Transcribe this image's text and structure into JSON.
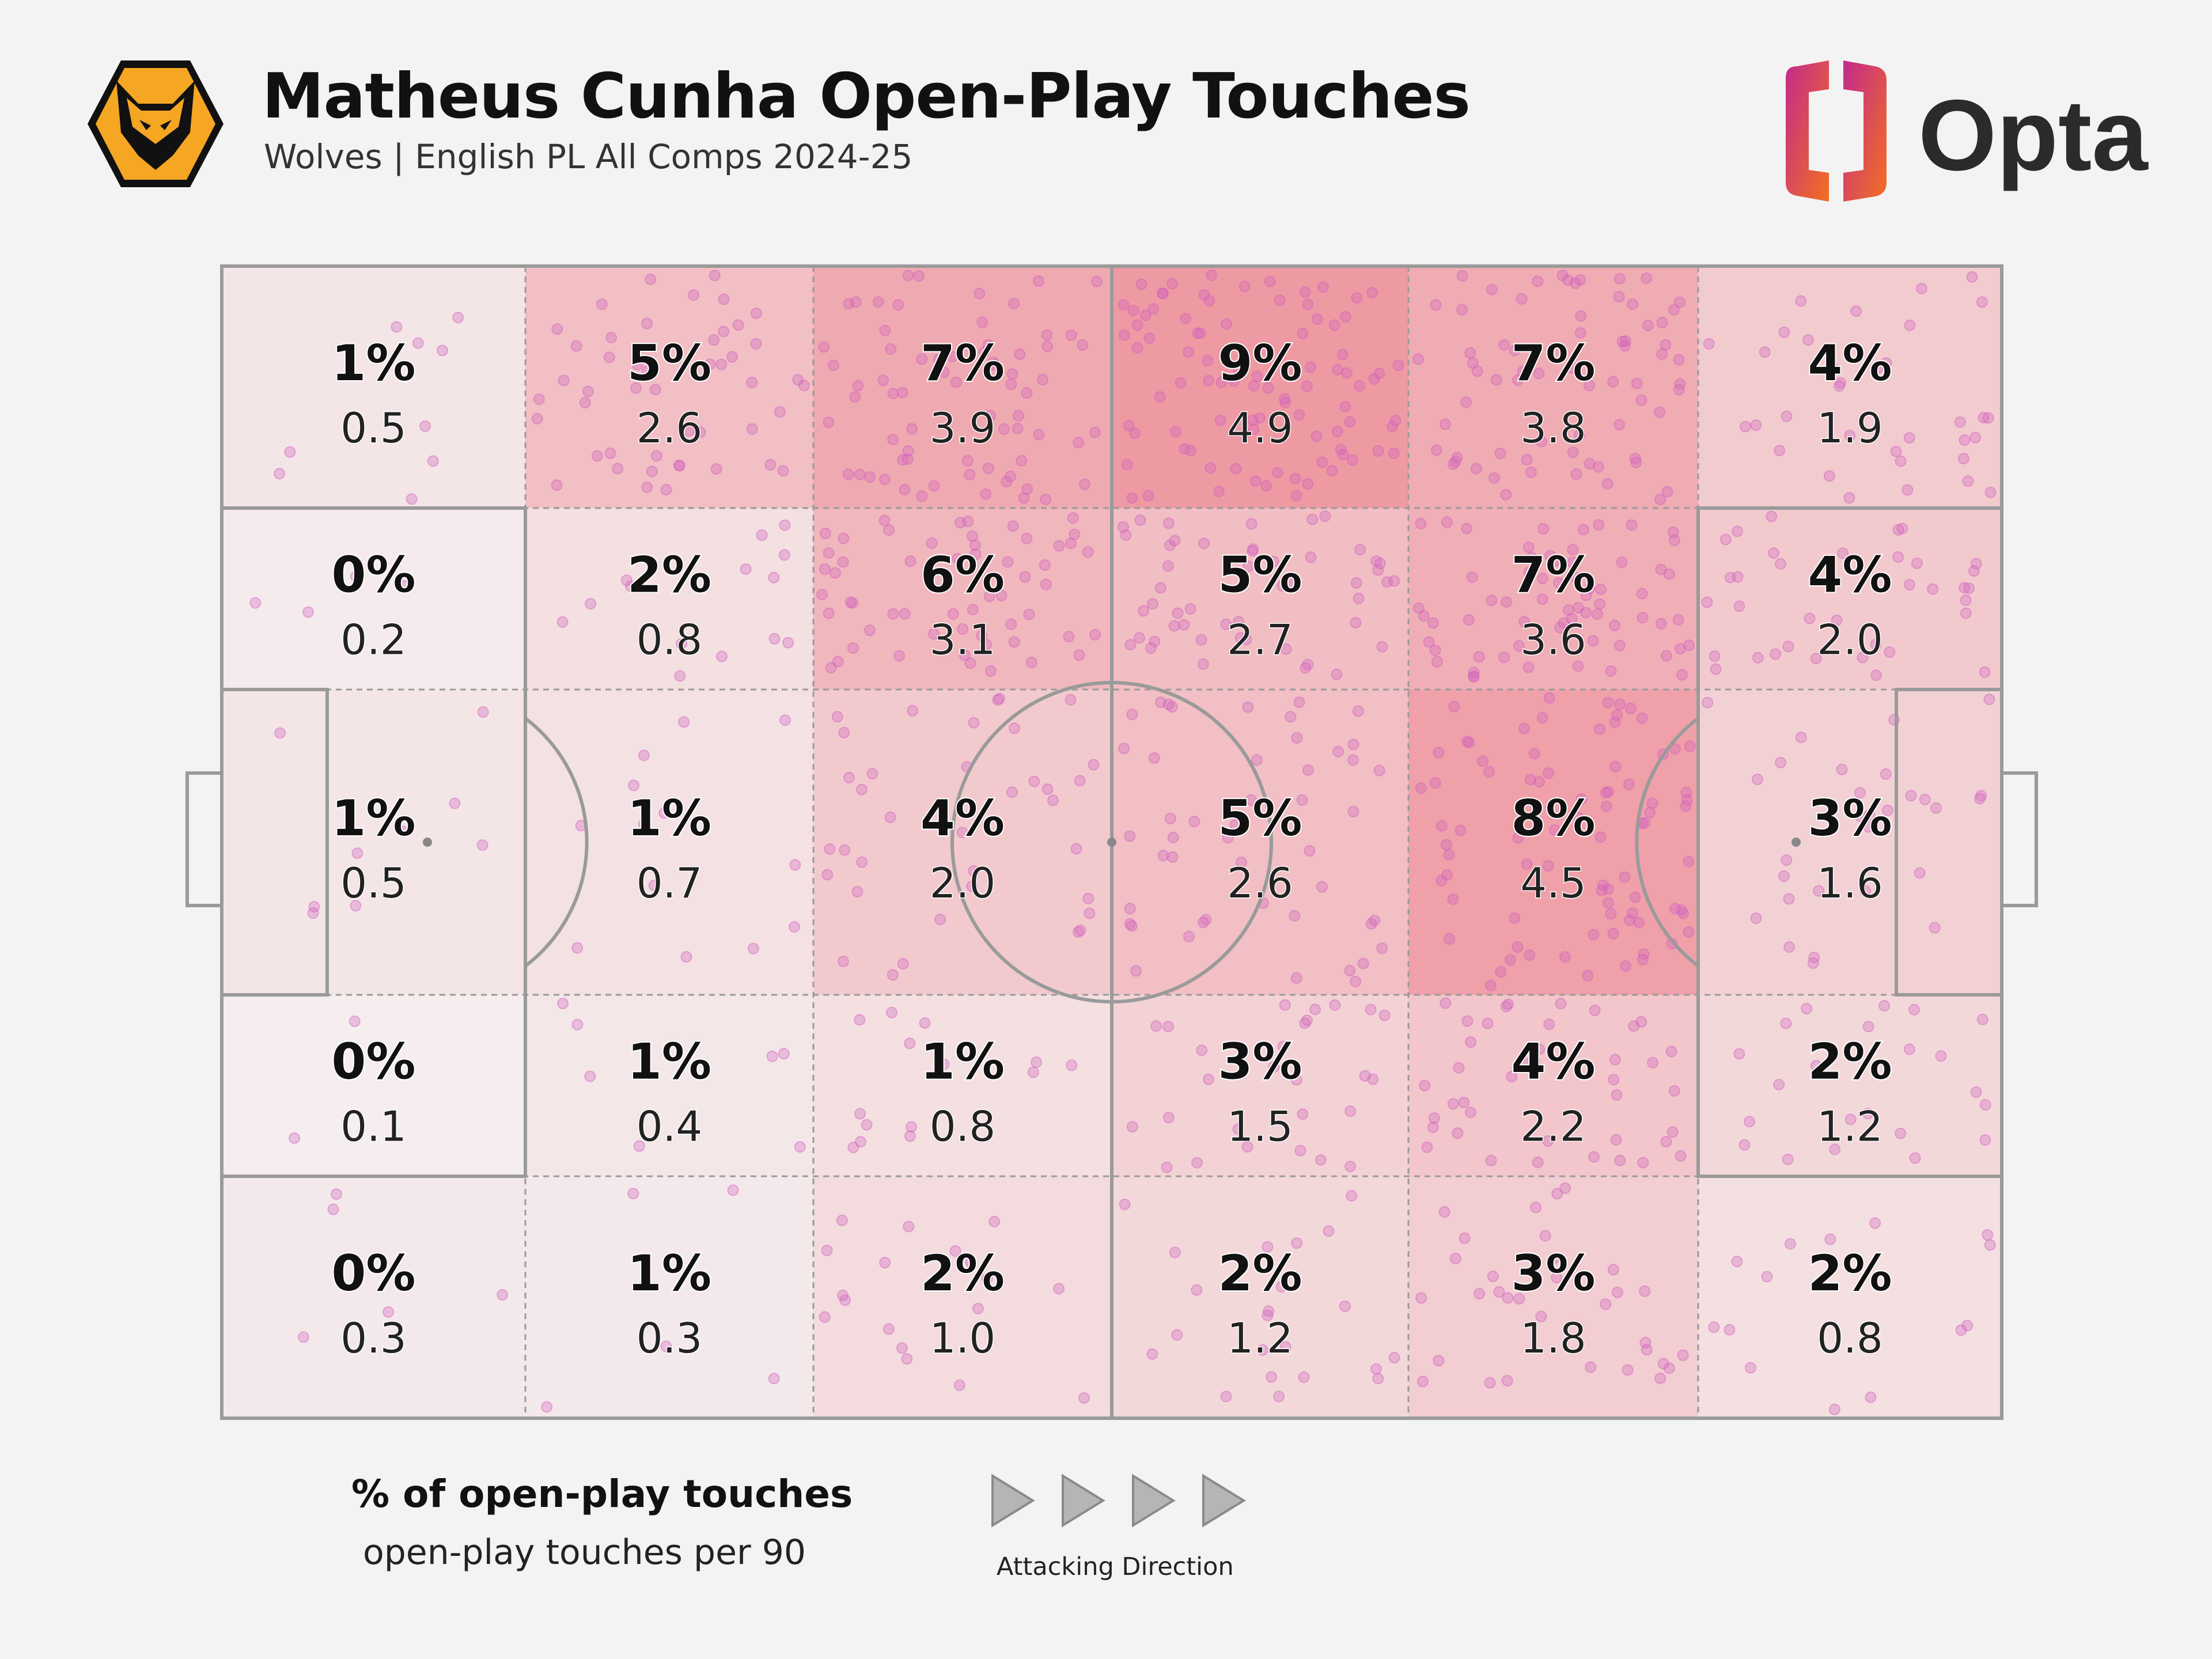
{
  "header": {
    "title": "Matheus Cunha Open-Play Touches",
    "subtitle": "Wolves | English PL All Comps 2024-25",
    "crest_icon": "wolves-crest-icon",
    "brand_logo": {
      "icon": "opta-logo-icon",
      "text": "Opta"
    }
  },
  "legend": {
    "pct_label": "% of open-play touches",
    "per90_label": "open-play touches per 90",
    "direction_label": "Attacking Direction",
    "direction_icon": "play-arrow-icon"
  },
  "colors": {
    "background": "#f3f3f3",
    "pitch_lines": "#9a9a9a",
    "zone_low": "#f5f0f0",
    "zone_high": "#ee9aa3",
    "touch_dot": "#d05fbf",
    "crest_orange": "#f5a623",
    "opta_gradient": [
      "#c32a8c",
      "#f36f21"
    ]
  },
  "chart_data": {
    "type": "heatmap",
    "pitch_layout": "horizontal, own goal left, attacking right",
    "columns": 6,
    "rows": 5,
    "cells": [
      [
        {
          "pct": "1%",
          "per90": "0.5"
        },
        {
          "pct": "5%",
          "per90": "2.6"
        },
        {
          "pct": "7%",
          "per90": "3.9"
        },
        {
          "pct": "9%",
          "per90": "4.9"
        },
        {
          "pct": "7%",
          "per90": "3.8"
        },
        {
          "pct": "4%",
          "per90": "1.9"
        }
      ],
      [
        {
          "pct": "0%",
          "per90": "0.2"
        },
        {
          "pct": "2%",
          "per90": "0.8"
        },
        {
          "pct": "6%",
          "per90": "3.1"
        },
        {
          "pct": "5%",
          "per90": "2.7"
        },
        {
          "pct": "7%",
          "per90": "3.6"
        },
        {
          "pct": "4%",
          "per90": "2.0"
        }
      ],
      [
        {
          "pct": "1%",
          "per90": "0.5"
        },
        {
          "pct": "1%",
          "per90": "0.7"
        },
        {
          "pct": "4%",
          "per90": "2.0"
        },
        {
          "pct": "5%",
          "per90": "2.6"
        },
        {
          "pct": "8%",
          "per90": "4.5"
        },
        {
          "pct": "3%",
          "per90": "1.6"
        }
      ],
      [
        {
          "pct": "0%",
          "per90": "0.1"
        },
        {
          "pct": "1%",
          "per90": "0.4"
        },
        {
          "pct": "1%",
          "per90": "0.8"
        },
        {
          "pct": "3%",
          "per90": "1.5"
        },
        {
          "pct": "4%",
          "per90": "2.2"
        },
        {
          "pct": "2%",
          "per90": "1.2"
        }
      ],
      [
        {
          "pct": "0%",
          "per90": "0.3"
        },
        {
          "pct": "1%",
          "per90": "0.3"
        },
        {
          "pct": "2%",
          "per90": "1.0"
        },
        {
          "pct": "2%",
          "per90": "1.2"
        },
        {
          "pct": "3%",
          "per90": "1.8"
        },
        {
          "pct": "2%",
          "per90": "0.8"
        }
      ]
    ],
    "touch_dots": "individual touch locations scattered within each zone; count scales with per-90 value"
  }
}
